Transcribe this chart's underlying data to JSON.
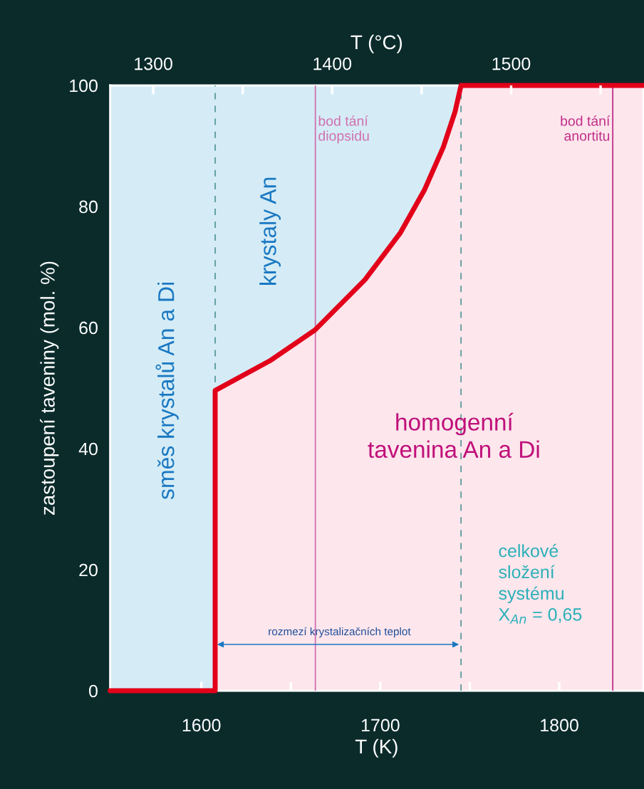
{
  "chart_data": {
    "type": "line",
    "xlabel": "T (K)",
    "x2label": "T (°C)",
    "ylabel": "zastoupení taveniny (mol. %)",
    "series": [
      {
        "color": "#e2001a",
        "x": [
          1549,
          1607.7,
          1607.7,
          1638.2,
          1663.5,
          1691.4,
          1711.3,
          1724.6,
          1735.2,
          1741.8,
          1745.1,
          1847
        ],
        "values": [
          0,
          0,
          49.6,
          54.5,
          59.6,
          67.9,
          75.7,
          82.7,
          89.8,
          95.7,
          100,
          100
        ]
      }
    ],
    "xlim": [
      1549,
      1847
    ],
    "xticks": [
      1600,
      {
        "value": 1650,
        "label": null
      },
      1700,
      {
        "value": 1750,
        "label": null
      },
      1800
    ],
    "x2lim": [
      1275.9,
      1573.9
    ],
    "x2ticks": [
      1300,
      {
        "value": 1350,
        "label": null
      },
      1400,
      {
        "value": 1450,
        "label": null
      },
      1500,
      {
        "value": 1550,
        "label": null
      }
    ],
    "ylim": [
      0,
      100
    ],
    "yticks": [
      0,
      20,
      40,
      60,
      80,
      100
    ],
    "ref_lines": [
      {
        "axis": "x",
        "value": 1607.7,
        "label": null,
        "color": "#5a9a9a",
        "line_style": "dashed"
      },
      {
        "axis": "x",
        "value": 1745.1,
        "label": null,
        "color": "#5a9a9a",
        "line_style": "dashed"
      },
      {
        "axis": "x",
        "value": 1663.7,
        "label": "bod tání\ndiopsidu",
        "color": "#d070b0",
        "line_style": "solid"
      },
      {
        "axis": "x",
        "value": 1829.9,
        "label": "bod tání\nanortitu",
        "color": "#c0308a",
        "line_style": "solid"
      }
    ],
    "annotations": [
      "směs krystalů An a Di",
      "krystaly An",
      "homogenní\ntavenina An a Di",
      "celkové\nsložení\nsystému\nX$_{An}$ = 0,65",
      "rozmezí krystalizačních teplot"
    ],
    "grid": false,
    "legend": false
  }
}
